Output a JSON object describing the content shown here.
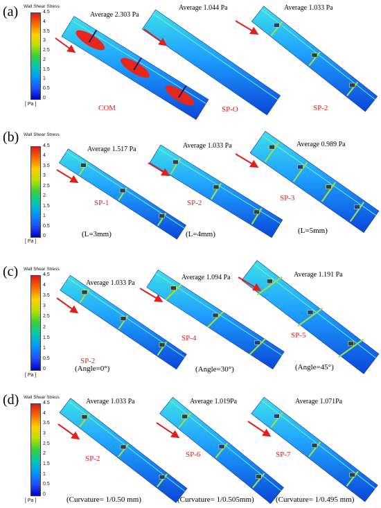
{
  "legend": {
    "title": "Wall Shear Stress",
    "ticks": [
      "4.5",
      "4",
      "3.5",
      "3",
      "2.5",
      "2",
      "1.5",
      "1",
      "0.5",
      "0"
    ],
    "unit": "[ Pa ]",
    "max": 4.5,
    "min": 0,
    "gradient": [
      "#d7191c",
      "#ff6a00",
      "#ffd000",
      "#b8e000",
      "#32d23c",
      "#00c8b4",
      "#0096ff",
      "#1e50ff",
      "#0000c8"
    ]
  },
  "panels": [
    {
      "label": "(a)",
      "models": [
        {
          "avg": "Average 2.303 Pa",
          "name": "COM",
          "param": ""
        },
        {
          "avg": "Average 1.044 Pa",
          "name": "SP-O",
          "param": ""
        },
        {
          "avg": "Average 1.033 Pa",
          "name": "SP-2",
          "param": ""
        }
      ]
    },
    {
      "label": "(b)",
      "models": [
        {
          "avg": "Average 1.517 Pa",
          "name": "SP-1",
          "param": "(L=3mm)"
        },
        {
          "avg": "Average 1.033 Pa",
          "name": "SP-2",
          "param": "(L=4mm)"
        },
        {
          "avg": "Average 0.989 Pa",
          "name": "SP-3",
          "param": "(L=5mm)"
        }
      ]
    },
    {
      "label": "(c)",
      "models": [
        {
          "avg": "Average 1.033 Pa",
          "name": "SP-2",
          "param": "(Angle=0°)"
        },
        {
          "avg": "Average 1.094 Pa",
          "name": "SP-4",
          "param": "(Angle=30°)"
        },
        {
          "avg": "Average 1.191 Pa",
          "name": "SP-5",
          "param": "(Angle=45°)"
        }
      ]
    },
    {
      "label": "(d)",
      "models": [
        {
          "avg": "Average 1.033 Pa",
          "name": "SP-2",
          "param": "(Curvature= 1/0.50 mm)"
        },
        {
          "avg": "Average 1.019Pa",
          "name": "SP-6",
          "param": "(Curvature= 1/0.505mm)"
        },
        {
          "avg": "Average 1.071Pa",
          "name": "SP-7",
          "param": "(Curvature= 1/0.495 mm)"
        }
      ]
    }
  ],
  "colors": {
    "arrow": "#e0201b",
    "channel_base": "#1ea0ff",
    "channel_dark": "#0a46d8",
    "channel_light": "#3fe0e8",
    "hot": "#e8261c"
  }
}
